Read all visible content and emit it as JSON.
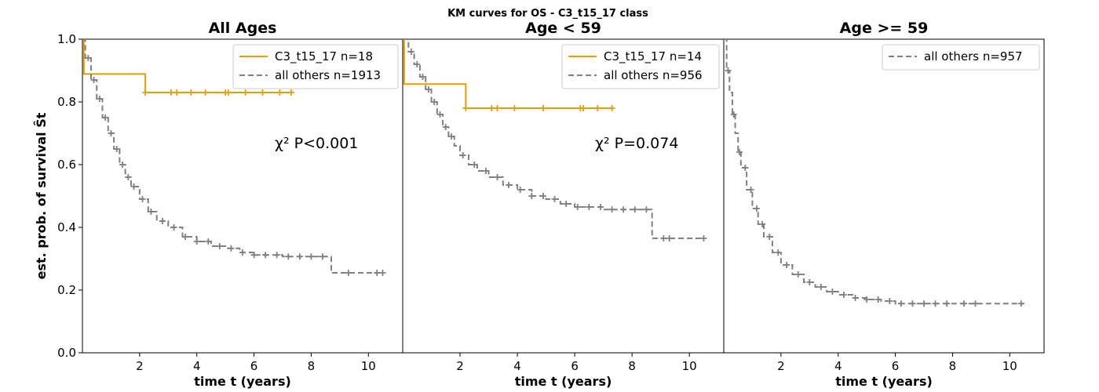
{
  "suptitle": "KM curves for OS - C3_t15_17 class",
  "colors": {
    "target": "#E69F00",
    "others": "#808080"
  },
  "chart_data": [
    {
      "type": "line",
      "title": "All Ages",
      "xlabel": "time t (years)",
      "ylabel": "est. prob. of survival Ŝt",
      "xlim": [
        0,
        11.2
      ],
      "ylim": [
        0,
        1
      ],
      "xticks": [
        2,
        4,
        6,
        8,
        10
      ],
      "yticks": [
        0.0,
        0.2,
        0.4,
        0.6,
        0.8,
        1.0
      ],
      "legend_position": "top-right",
      "annotation": "χ² P<0.001",
      "series": [
        {
          "name": "C3_t15_17 n=18",
          "style": "solid",
          "color": "#E69F00",
          "steps": [
            [
              0,
              1.0
            ],
            [
              0.05,
              0.889
            ],
            [
              2.2,
              0.83
            ],
            [
              7.3,
              0.83
            ]
          ],
          "censored": [
            2.2,
            3.1,
            3.3,
            3.8,
            4.3,
            5.0,
            5.1,
            5.7,
            6.3,
            6.9,
            7.3
          ]
        },
        {
          "name": "all others n=1913",
          "style": "dashed",
          "color": "#808080",
          "steps": [
            [
              0,
              1.0
            ],
            [
              0.1,
              0.94
            ],
            [
              0.3,
              0.87
            ],
            [
              0.5,
              0.81
            ],
            [
              0.7,
              0.75
            ],
            [
              0.9,
              0.7
            ],
            [
              1.1,
              0.65
            ],
            [
              1.3,
              0.6
            ],
            [
              1.5,
              0.56
            ],
            [
              1.7,
              0.53
            ],
            [
              2.0,
              0.49
            ],
            [
              2.3,
              0.45
            ],
            [
              2.6,
              0.42
            ],
            [
              3.0,
              0.4
            ],
            [
              3.5,
              0.37
            ],
            [
              4.0,
              0.355
            ],
            [
              4.5,
              0.34
            ],
            [
              5.0,
              0.333
            ],
            [
              5.5,
              0.32
            ],
            [
              6.0,
              0.312
            ],
            [
              7.0,
              0.307
            ],
            [
              8.0,
              0.307
            ],
            [
              8.7,
              0.307
            ],
            [
              8.7,
              0.255
            ],
            [
              10.5,
              0.255
            ]
          ],
          "censored": [
            0.2,
            0.4,
            0.6,
            0.8,
            1.0,
            1.2,
            1.4,
            1.6,
            1.8,
            2.1,
            2.4,
            2.8,
            3.2,
            3.6,
            4.0,
            4.4,
            4.8,
            5.2,
            5.6,
            6.0,
            6.4,
            6.8,
            7.2,
            7.6,
            8.0,
            8.4,
            9.3,
            10.3,
            10.5
          ]
        }
      ]
    },
    {
      "type": "line",
      "title": "Age < 59",
      "xlabel": "time t (years)",
      "ylabel": "",
      "xlim": [
        0,
        11.2
      ],
      "ylim": [
        0,
        1
      ],
      "xticks": [
        2,
        4,
        6,
        8,
        10
      ],
      "yticks": [],
      "legend_position": "top-right",
      "annotation": "χ² P=0.074",
      "series": [
        {
          "name": "C3_t15_17 n=14",
          "style": "solid",
          "color": "#E69F00",
          "steps": [
            [
              0,
              1.0
            ],
            [
              0.05,
              0.857
            ],
            [
              2.2,
              0.78
            ],
            [
              7.3,
              0.78
            ]
          ],
          "censored": [
            2.2,
            3.1,
            3.3,
            3.9,
            4.9,
            6.2,
            6.3,
            6.8,
            7.3
          ]
        },
        {
          "name": "all others n=956",
          "style": "dashed",
          "color": "#808080",
          "steps": [
            [
              0,
              1.0
            ],
            [
              0.2,
              0.96
            ],
            [
              0.4,
              0.92
            ],
            [
              0.6,
              0.88
            ],
            [
              0.8,
              0.84
            ],
            [
              1.0,
              0.8
            ],
            [
              1.2,
              0.76
            ],
            [
              1.4,
              0.72
            ],
            [
              1.6,
              0.69
            ],
            [
              1.8,
              0.66
            ],
            [
              2.0,
              0.63
            ],
            [
              2.3,
              0.6
            ],
            [
              2.6,
              0.58
            ],
            [
              3.0,
              0.56
            ],
            [
              3.5,
              0.535
            ],
            [
              4.0,
              0.52
            ],
            [
              4.5,
              0.5
            ],
            [
              5.0,
              0.49
            ],
            [
              5.5,
              0.475
            ],
            [
              6.0,
              0.465
            ],
            [
              7.0,
              0.457
            ],
            [
              8.0,
              0.457
            ],
            [
              8.7,
              0.457
            ],
            [
              8.7,
              0.365
            ],
            [
              10.5,
              0.365
            ]
          ],
          "censored": [
            0.3,
            0.5,
            0.7,
            0.9,
            1.1,
            1.3,
            1.5,
            1.7,
            2.1,
            2.5,
            2.9,
            3.3,
            3.7,
            4.1,
            4.5,
            4.9,
            5.3,
            5.7,
            6.1,
            6.5,
            6.9,
            7.3,
            7.7,
            8.1,
            8.5,
            9.1,
            9.3,
            10.5
          ]
        }
      ]
    },
    {
      "type": "line",
      "title": "Age >= 59",
      "xlabel": "time t (years)",
      "ylabel": "",
      "xlim": [
        0,
        11.2
      ],
      "ylim": [
        0,
        1
      ],
      "xticks": [
        2,
        4,
        6,
        8,
        10
      ],
      "yticks": [],
      "legend_position": "top-right",
      "annotation": "",
      "series": [
        {
          "name": "all others n=957",
          "style": "dashed",
          "color": "#808080",
          "steps": [
            [
              0,
              1.0
            ],
            [
              0.1,
              0.9
            ],
            [
              0.2,
              0.83
            ],
            [
              0.3,
              0.76
            ],
            [
              0.4,
              0.7
            ],
            [
              0.5,
              0.64
            ],
            [
              0.6,
              0.59
            ],
            [
              0.8,
              0.52
            ],
            [
              1.0,
              0.46
            ],
            [
              1.2,
              0.41
            ],
            [
              1.4,
              0.37
            ],
            [
              1.7,
              0.32
            ],
            [
              2.0,
              0.28
            ],
            [
              2.4,
              0.25
            ],
            [
              2.8,
              0.225
            ],
            [
              3.2,
              0.21
            ],
            [
              3.6,
              0.195
            ],
            [
              4.0,
              0.185
            ],
            [
              4.5,
              0.175
            ],
            [
              5.0,
              0.17
            ],
            [
              5.5,
              0.165
            ],
            [
              6.0,
              0.157
            ],
            [
              10.5,
              0.157
            ]
          ],
          "censored": [
            0.15,
            0.35,
            0.55,
            0.75,
            0.95,
            1.15,
            1.35,
            1.6,
            1.9,
            2.2,
            2.6,
            3.0,
            3.4,
            3.8,
            4.2,
            4.6,
            5.0,
            5.4,
            5.8,
            6.2,
            6.6,
            7.0,
            7.4,
            7.8,
            8.4,
            8.8,
            10.4
          ]
        }
      ]
    }
  ]
}
